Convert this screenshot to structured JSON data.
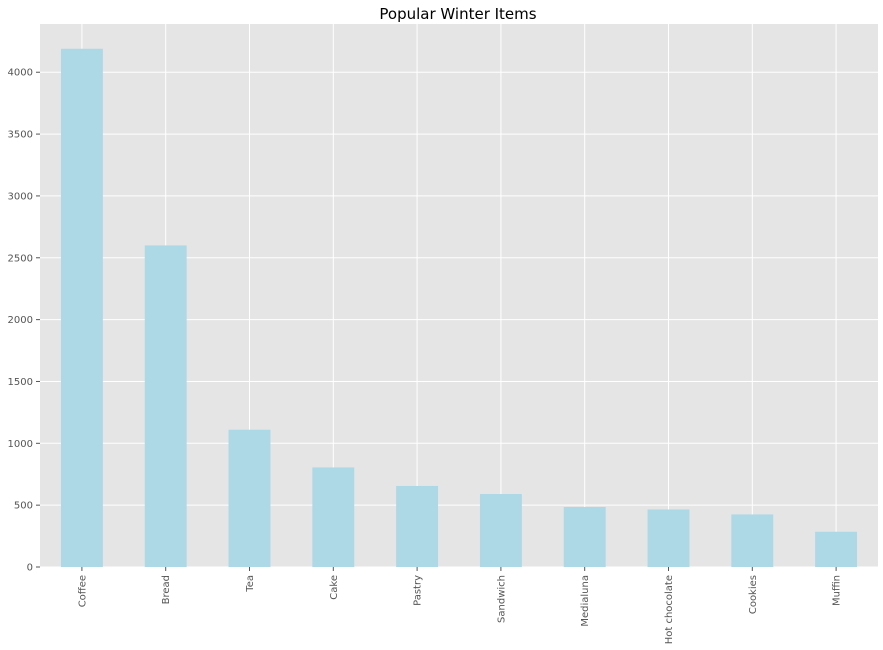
{
  "chart_data": {
    "type": "bar",
    "title": "Popular Winter Items",
    "xlabel": "",
    "ylabel": "",
    "categories": [
      "Coffee",
      "Bread",
      "Tea",
      "Cake",
      "Pastry",
      "Sandwich",
      "Medialuna",
      "Hot chocolate",
      "Cookies",
      "Muffin"
    ],
    "values": [
      4190,
      2600,
      1110,
      805,
      655,
      590,
      485,
      465,
      425,
      285
    ],
    "ylim": [
      0,
      4390
    ],
    "yticks": [
      0,
      500,
      1000,
      1500,
      2000,
      2500,
      3000,
      3500,
      4000
    ],
    "grid": true,
    "legend": "none",
    "colors": {
      "bar": "#add8e6",
      "plot_background": "#e5e5e5",
      "grid": "#ffffff"
    }
  }
}
